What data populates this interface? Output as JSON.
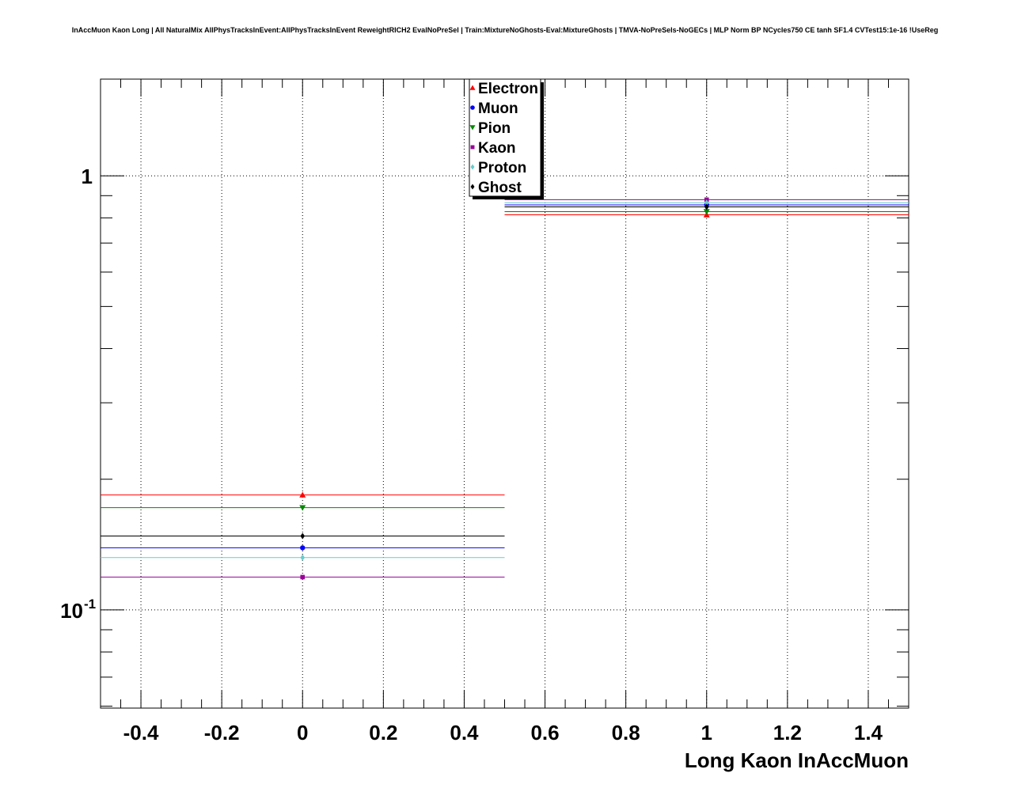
{
  "chart_data": {
    "type": "scatter",
    "title": "InAccMuon Kaon Long | All NaturalMix AllPhysTracksInEvent:AllPhysTracksInEvent ReweightRICH2 EvalNoPreSel | Train:MixtureNoGhosts-Eval:MixtureGhosts | TMVA-NoPreSels-NoGECs | MLP Norm BP NCycles750 CE tanh SF1.4 CVTest15:1e-16 !UseReg",
    "xlabel": "Long Kaon InAccMuon",
    "ylabel": "",
    "xlim": [
      -0.5,
      1.5
    ],
    "ylim": [
      0.0594,
      1.67
    ],
    "yscale": "log",
    "grid": true,
    "legend_position": "top-center",
    "x_ticks": [
      "-0.4",
      "-0.2",
      "0",
      "0.2",
      "0.4",
      "0.6",
      "0.8",
      "1",
      "1.2",
      "1.4"
    ],
    "x_tick_values": [
      -0.4,
      -0.2,
      0,
      0.2,
      0.4,
      0.6,
      0.8,
      1,
      1.2,
      1.4
    ],
    "y_tick_labels": [
      {
        "value": 1,
        "base": "1",
        "exp": ""
      },
      {
        "value": 0.1,
        "base": "10",
        "exp": "-1"
      }
    ],
    "x_error": 0.5,
    "x": [
      0,
      1
    ],
    "series": [
      {
        "name": "Electron",
        "color": "#ff0000",
        "marker": "triangle-up",
        "values": [
          0.184,
          0.813
        ]
      },
      {
        "name": "Muon",
        "color": "#0000ff",
        "marker": "circle",
        "values": [
          0.139,
          0.857
        ]
      },
      {
        "name": "Pion",
        "color": "#008800",
        "marker": "triangle-down",
        "values": [
          0.172,
          0.827
        ]
      },
      {
        "name": "Kaon",
        "color": "#990099",
        "marker": "square",
        "values": [
          0.119,
          0.881
        ]
      },
      {
        "name": "Proton",
        "color": "#66cccc",
        "marker": "diamond",
        "values": [
          0.132,
          0.867
        ]
      },
      {
        "name": "Ghost",
        "color": "#000000",
        "marker": "diamond",
        "values": [
          0.148,
          0.848
        ]
      }
    ]
  }
}
